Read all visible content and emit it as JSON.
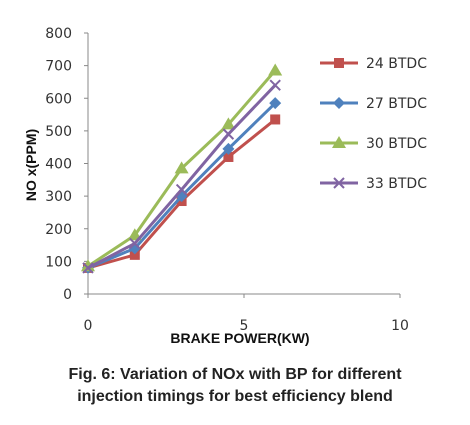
{
  "chart_data": {
    "type": "line",
    "title": "",
    "xlabel": "BRAKE POWER(KW)",
    "ylabel": "NO x(PPM)",
    "xlim": [
      0,
      10
    ],
    "ylim": [
      0,
      800
    ],
    "x_ticks": [
      "0",
      "5",
      "10"
    ],
    "y_ticks": [
      "0",
      "100",
      "200",
      "300",
      "400",
      "500",
      "600",
      "700",
      "800"
    ],
    "grid": false,
    "legend_position": "right",
    "series": [
      {
        "name": "24 BTDC",
        "color": "#c0504d",
        "marker": "square",
        "x": [
          0,
          1.5,
          3,
          4.5,
          6
        ],
        "y": [
          80,
          120,
          285,
          420,
          535
        ]
      },
      {
        "name": "27 BTDC",
        "color": "#4f81bd",
        "marker": "diamond",
        "x": [
          0,
          1.5,
          3,
          4.5,
          6
        ],
        "y": [
          80,
          140,
          300,
          445,
          585
        ]
      },
      {
        "name": "30 BTDC",
        "color": "#9bbb59",
        "marker": "triangle",
        "x": [
          0,
          1.5,
          3,
          4.5,
          6
        ],
        "y": [
          85,
          180,
          385,
          520,
          685
        ]
      },
      {
        "name": "33 BTDC",
        "color": "#8064a2",
        "marker": "x",
        "x": [
          0,
          1.5,
          3,
          4.5,
          6
        ],
        "y": [
          80,
          155,
          320,
          490,
          640
        ]
      }
    ]
  },
  "caption": {
    "line1": "Fig. 6: Variation of NOx with BP for different",
    "line2": "injection timings for best efficiency blend"
  }
}
